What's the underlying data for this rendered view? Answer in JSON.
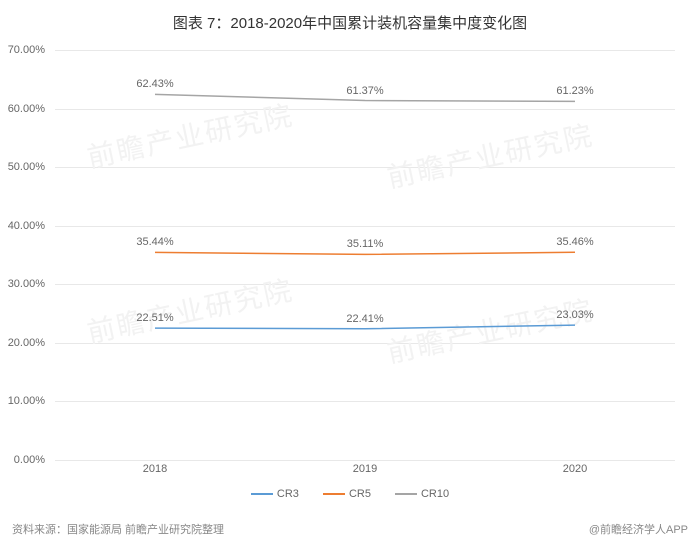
{
  "title": "图表 7：2018-2020年中国累计装机容量集中度变化图",
  "chart": {
    "type": "line",
    "categories": [
      "2018",
      "2019",
      "2020"
    ],
    "ylim": [
      0,
      70
    ],
    "ytick_step": 10,
    "y_format": "percent",
    "background_color": "#ffffff",
    "grid_color": "#e8e8e8",
    "axis_label_color": "#666666",
    "axis_label_fontsize": 11,
    "title_fontsize": 15,
    "title_color": "#333333",
    "line_width": 1.5,
    "series": [
      {
        "name": "CR3",
        "color": "#5b9bd5",
        "values": [
          22.51,
          22.41,
          23.03
        ],
        "labels": [
          "22.51%",
          "22.41%",
          "23.03%"
        ]
      },
      {
        "name": "CR5",
        "color": "#ed7d31",
        "values": [
          35.44,
          35.11,
          35.46
        ],
        "labels": [
          "35.44%",
          "35.11%",
          "35.46%"
        ]
      },
      {
        "name": "CR10",
        "color": "#a5a5a5",
        "values": [
          62.43,
          61.37,
          61.23
        ],
        "labels": [
          "62.43%",
          "61.37%",
          "61.23%"
        ]
      }
    ]
  },
  "source_prefix": "资料来源：",
  "source_text": "国家能源局 前瞻产业研究院整理",
  "app_credit": "@前瞻经济学人APP",
  "watermark_text": "前瞻产业研究院",
  "y_labels": [
    "0.00%",
    "10.00%",
    "20.00%",
    "30.00%",
    "40.00%",
    "50.00%",
    "60.00%",
    "70.00%"
  ]
}
